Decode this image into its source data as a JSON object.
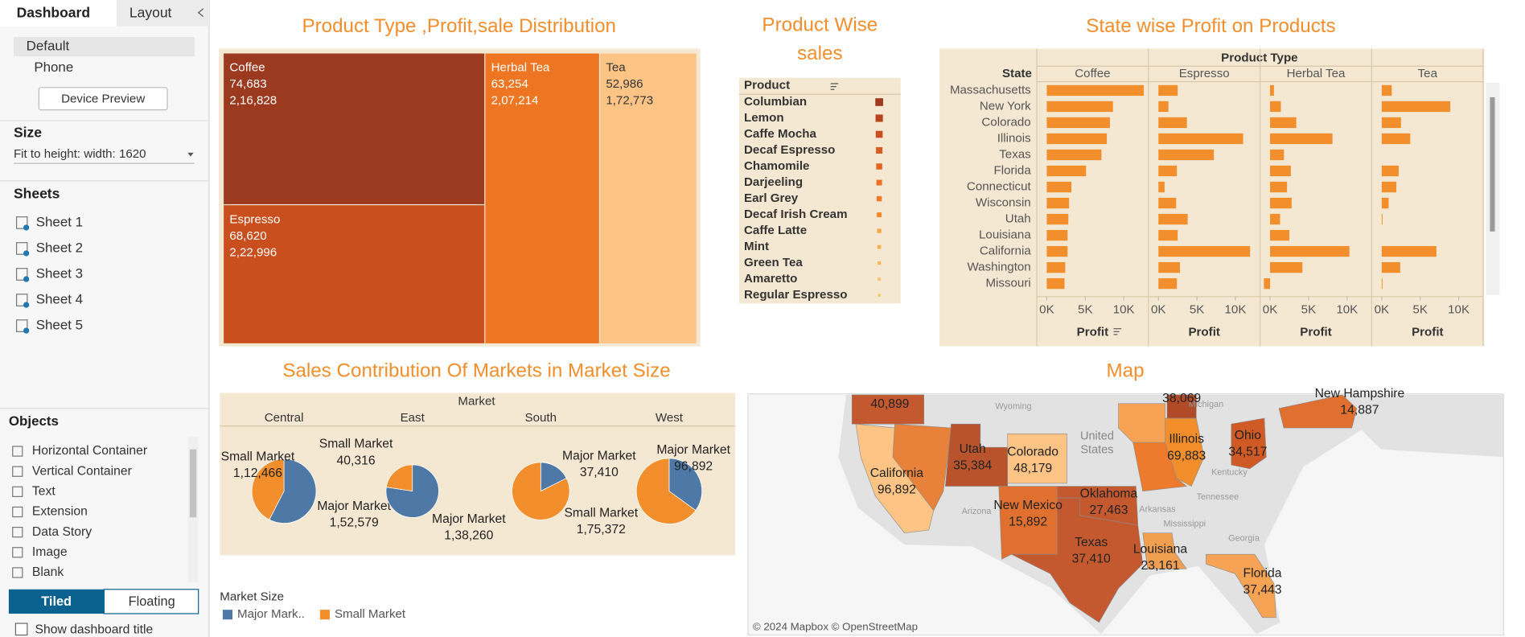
{
  "sidebar": {
    "tabs": [
      "Dashboard",
      "Layout"
    ],
    "devices": [
      "Default",
      "Phone"
    ],
    "device_preview": "Device Preview",
    "size_title": "Size",
    "size_value": "Fit to height: width: 1620",
    "sheets_title": "Sheets",
    "sheets": [
      "Sheet 1",
      "Sheet 2",
      "Sheet 3",
      "Sheet 4",
      "Sheet 5"
    ],
    "objects_title": "Objects",
    "objects": [
      "Horizontal Container",
      "Vertical Container",
      "Text",
      "Extension",
      "Data Story",
      "Image",
      "Blank"
    ],
    "layout_modes": [
      "Tiled",
      "Floating"
    ],
    "show_title": "Show dashboard title"
  },
  "treemap": {
    "title": "Product Type ,Profit,sale Distribution",
    "items": [
      {
        "name": "Coffee",
        "profit": "74,683",
        "sales": "2,16,828"
      },
      {
        "name": "Espresso",
        "profit": "68,620",
        "sales": "2,22,996"
      },
      {
        "name": "Herbal Tea",
        "profit": "63,254",
        "sales": "2,07,214"
      },
      {
        "name": "Tea",
        "profit": "52,986",
        "sales": "1,72,773"
      }
    ]
  },
  "product_sales": {
    "title": "Product Wise sales",
    "header": "Product",
    "products": [
      "Columbian",
      "Lemon",
      "Caffe Mocha",
      "Decaf Espresso",
      "Chamomile",
      "Darjeeling",
      "Earl Grey",
      "Decaf Irish Cream",
      "Caffe Latte",
      "Mint",
      "Green Tea",
      "Amaretto",
      "Regular Espresso"
    ]
  },
  "chart_data": [
    {
      "type": "bar",
      "orientation": "horizontal",
      "title": "State wise Profit on Products",
      "column_title": "Product Type",
      "row_title": "State",
      "axis_label": "Profit",
      "categories": [
        "Massachusetts",
        "New York",
        "Colorado",
        "Illinois",
        "Texas",
        "Florida",
        "Connecticut",
        "Wisconsin",
        "Utah",
        "Louisiana",
        "California",
        "Washington",
        "Missouri"
      ],
      "series": [
        {
          "name": "Coffee",
          "color": "#f28e2b",
          "values": [
            12600,
            8600,
            8200,
            7800,
            7100,
            5100,
            3200,
            2900,
            2800,
            2700,
            2700,
            2400,
            2300
          ]
        },
        {
          "name": "Espresso",
          "color": "#f28e2b",
          "values": [
            2500,
            1300,
            3700,
            11000,
            7200,
            2400,
            800,
            2300,
            3800,
            2500,
            11900,
            2800,
            2400
          ]
        },
        {
          "name": "Herbal Tea",
          "color": "#f28e2b",
          "values": [
            500,
            1400,
            3400,
            8100,
            1800,
            2700,
            2200,
            2800,
            1300,
            2500,
            10300,
            4200,
            -800
          ]
        },
        {
          "name": "Tea",
          "color": "#f28e2b",
          "values": [
            1300,
            8900,
            2500,
            3700,
            0,
            2200,
            1900,
            900,
            100,
            0,
            7100,
            2400,
            100
          ]
        }
      ],
      "xlim": [
        -1300,
        13200
      ],
      "xticks": [
        {
          "value": 0,
          "label": "0K"
        },
        {
          "value": 5000,
          "label": "5K"
        },
        {
          "value": 10000,
          "label": "10K"
        }
      ]
    },
    {
      "type": "pie",
      "title": "Sales Contribution Of Markets in Market Size",
      "facet_title": "Market",
      "categories": [
        "Central",
        "East",
        "South",
        "West"
      ],
      "series": [
        {
          "name": "Major Market",
          "color": "#4e79a7",
          "values": [
            152579,
            138260,
            37410,
            96892
          ],
          "value_labels": [
            "1,52,579",
            "1,38,260",
            "37,410",
            "96,892"
          ]
        },
        {
          "name": "Small Market",
          "color": "#f28e2b",
          "values": [
            112466,
            40316,
            175372,
            180000
          ],
          "value_labels": [
            "1,12,466",
            "40,316",
            "1,75,372",
            null
          ]
        }
      ],
      "legend_title": "Market Size",
      "legend_labels": [
        "Major Mark..",
        "Small Market"
      ]
    }
  ],
  "map": {
    "title": "Map",
    "regions": [
      {
        "value": "40,899"
      },
      {
        "name": "California",
        "value": "96,892"
      },
      {
        "name": "Utah",
        "value": "35,384"
      },
      {
        "name": "Colorado",
        "value": "48,179"
      },
      {
        "name": "New Mexico",
        "value": "15,892"
      },
      {
        "name": "Oklahoma",
        "value": "27,463"
      },
      {
        "name": "Texas",
        "value": "37,410"
      },
      {
        "name": "Louisiana",
        "value": "23,161"
      },
      {
        "name": "Illinois",
        "value": "69,883"
      },
      {
        "value": "38,069"
      },
      {
        "name": "Ohio",
        "value": "34,517"
      },
      {
        "name": "New Hampshire",
        "value": "14,887"
      },
      {
        "name": "Florida",
        "value": "37,443"
      }
    ],
    "base_labels": [
      "Wyoming",
      "Michigan",
      "United States",
      "Arizona",
      "Arkansas",
      "Tennessee",
      "Mississippi",
      "Kentucky",
      "Georgia"
    ],
    "attribution": "© 2024 Mapbox © OpenStreetMap"
  }
}
